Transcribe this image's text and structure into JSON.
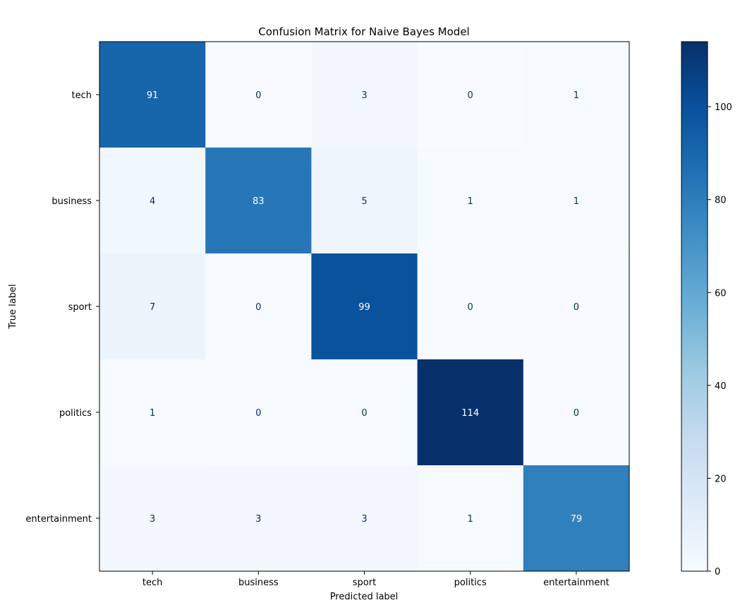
{
  "chart_data": {
    "type": "heatmap",
    "title": "Confusion Matrix for Naive Bayes Model",
    "xlabel": "Predicted label",
    "ylabel": "True label",
    "x_categories": [
      "tech",
      "business",
      "sport",
      "politics",
      "entertainment"
    ],
    "y_categories": [
      "tech",
      "business",
      "sport",
      "politics",
      "entertainment"
    ],
    "values": [
      [
        91,
        0,
        3,
        0,
        1
      ],
      [
        4,
        83,
        5,
        1,
        1
      ],
      [
        7,
        0,
        99,
        0,
        0
      ],
      [
        1,
        0,
        0,
        114,
        0
      ],
      [
        3,
        3,
        3,
        1,
        79
      ]
    ],
    "colormap": "Blues",
    "colormap_colors": [
      "#f7fbff",
      "#deebf7",
      "#c6dbef",
      "#9ecae1",
      "#6baed6",
      "#4292c6",
      "#2171b5",
      "#08519c",
      "#08306b"
    ],
    "colorbar": {
      "min": 0,
      "max": 114,
      "ticks": [
        0,
        20,
        40,
        60,
        80,
        100
      ]
    },
    "grid": false,
    "legend": "none"
  }
}
